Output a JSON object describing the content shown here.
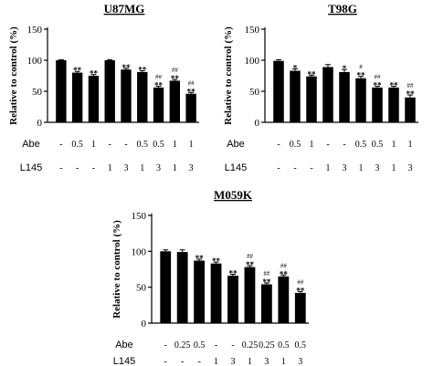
{
  "chart_data": [
    {
      "type": "bar",
      "title": "U87MG",
      "ylabel": "Relative to control (%)",
      "ylim": [
        0,
        150
      ],
      "yticks": [
        0,
        50,
        100,
        150
      ],
      "grid": false,
      "row_labels": [
        "Abe",
        "L145"
      ],
      "categories": [
        {
          "abe": "-",
          "l145": "-"
        },
        {
          "abe": "0.5",
          "l145": "-"
        },
        {
          "abe": "1",
          "l145": "-"
        },
        {
          "abe": "-",
          "l145": "1"
        },
        {
          "abe": "-",
          "l145": "3"
        },
        {
          "abe": "0.5",
          "l145": "1"
        },
        {
          "abe": "0.5",
          "l145": "3"
        },
        {
          "abe": "1",
          "l145": "1"
        },
        {
          "abe": "1",
          "l145": "3"
        }
      ],
      "values": [
        100,
        80,
        75,
        100,
        85,
        81,
        56,
        67,
        46
      ],
      "errors": [
        1,
        2,
        2,
        1,
        2,
        2,
        2,
        2,
        2
      ],
      "sig": [
        [
          "",
          ""
        ],
        [
          "",
          "**"
        ],
        [
          "",
          "**"
        ],
        [
          "",
          ""
        ],
        [
          "",
          "**"
        ],
        [
          "",
          "**"
        ],
        [
          "##",
          "**"
        ],
        [
          "##",
          "**"
        ],
        [
          "##",
          "**"
        ]
      ]
    },
    {
      "type": "bar",
      "title": "T98G",
      "ylabel": "Relative to control (%)",
      "ylim": [
        0,
        150
      ],
      "yticks": [
        0,
        50,
        100,
        150
      ],
      "grid": false,
      "row_labels": [
        "Abe",
        "L145"
      ],
      "categories": [
        {
          "abe": "-",
          "l145": "-"
        },
        {
          "abe": "0.5",
          "l145": "-"
        },
        {
          "abe": "1",
          "l145": "-"
        },
        {
          "abe": "-",
          "l145": "1"
        },
        {
          "abe": "-",
          "l145": "3"
        },
        {
          "abe": "0.5",
          "l145": "1"
        },
        {
          "abe": "0.5",
          "l145": "3"
        },
        {
          "abe": "1",
          "l145": "1"
        },
        {
          "abe": "1",
          "l145": "3"
        }
      ],
      "values": [
        99,
        83,
        74,
        89,
        81,
        71,
        56,
        56,
        40
      ],
      "errors": [
        2,
        3,
        2,
        4,
        4,
        3,
        2,
        2,
        4
      ],
      "sig": [
        [
          "",
          ""
        ],
        [
          "",
          "*"
        ],
        [
          "",
          "**"
        ],
        [
          "",
          ""
        ],
        [
          "",
          "*"
        ],
        [
          "#",
          "**"
        ],
        [
          "##",
          "**"
        ],
        [
          "",
          "**"
        ],
        [
          "##",
          "**"
        ]
      ]
    },
    {
      "type": "bar",
      "title": "M059K",
      "ylabel": "Relative to control (%)",
      "ylim": [
        0,
        150
      ],
      "yticks": [
        0,
        50,
        100,
        150
      ],
      "grid": false,
      "row_labels": [
        "Abe",
        "L145"
      ],
      "categories": [
        {
          "abe": "-",
          "l145": "-"
        },
        {
          "abe": "0.25",
          "l145": "-"
        },
        {
          "abe": "0.5",
          "l145": "-"
        },
        {
          "abe": "-",
          "l145": "1"
        },
        {
          "abe": "-",
          "l145": "3"
        },
        {
          "abe": "0.25",
          "l145": "1"
        },
        {
          "abe": "0.25",
          "l145": "3"
        },
        {
          "abe": "0.5",
          "l145": "1"
        },
        {
          "abe": "0.5",
          "l145": "3"
        }
      ],
      "values": [
        100,
        99,
        87,
        83,
        66,
        78,
        54,
        65,
        42
      ],
      "errors": [
        2,
        3,
        2,
        2,
        2,
        2,
        2,
        2,
        2
      ],
      "sig": [
        [
          "",
          ""
        ],
        [
          "",
          ""
        ],
        [
          "",
          "**"
        ],
        [
          "",
          "**"
        ],
        [
          "",
          "**"
        ],
        [
          "##",
          "**"
        ],
        [
          "##",
          "**"
        ],
        [
          "##",
          "**"
        ],
        [
          "##",
          "**"
        ]
      ]
    }
  ]
}
